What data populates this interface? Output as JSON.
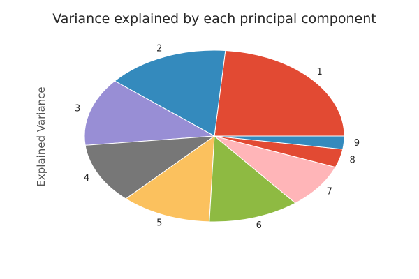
{
  "chart_data": {
    "type": "pie",
    "title": "Variance explained by each principal component",
    "ylabel": "Explained Variance",
    "xlabel": "",
    "legend": "none",
    "grid": false,
    "slices": [
      {
        "label": "1",
        "value": 24.0,
        "color": "#E24A33"
      },
      {
        "label": "2",
        "value": 15.5,
        "color": "#348ABD"
      },
      {
        "label": "3",
        "value": 13.0,
        "color": "#988ED5"
      },
      {
        "label": "4",
        "value": 11.5,
        "color": "#777777"
      },
      {
        "label": "5",
        "value": 11.5,
        "color": "#FBC15E"
      },
      {
        "label": "6",
        "value": 11.5,
        "color": "#8EBA42"
      },
      {
        "label": "7",
        "value": 8.5,
        "color": "#FFB5B8"
      },
      {
        "label": "8",
        "value": 3.5,
        "color": "#E24A33"
      },
      {
        "label": "9",
        "value": 2.5,
        "color": "#348ABD"
      }
    ]
  }
}
